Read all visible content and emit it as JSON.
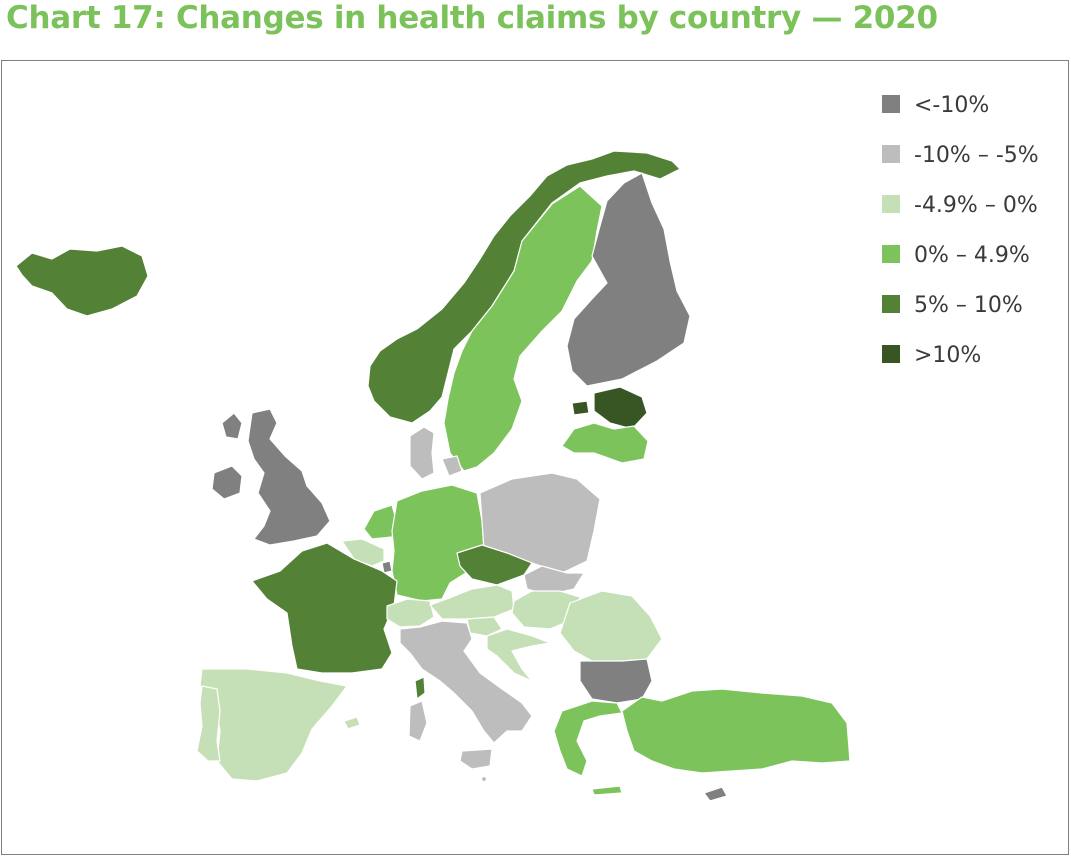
{
  "title": "Chart 17: Changes in health claims by country — 2020",
  "colors": {
    "title": "#7cc25a",
    "border": "#808080",
    "lt_minus10": "#808080",
    "m10_to_m5": "#bdbdbd",
    "m49_to_0": "#c5e0b6",
    "p0_to_49": "#7dc35c",
    "p5_to_10": "#538135",
    "gt10": "#375623"
  },
  "legend": [
    {
      "label": "<-10%",
      "color": "#808080",
      "key": "lt_minus10"
    },
    {
      "label": "-10% – -5%",
      "color": "#bdbdbd",
      "key": "m10_to_m5"
    },
    {
      "label": "-4.9% – 0%",
      "color": "#c5e0b6",
      "key": "m49_to_0"
    },
    {
      "label": "0% – 4.9%",
      "color": "#7dc35c",
      "key": "p0_to_49"
    },
    {
      "label": "5% – 10%",
      "color": "#538135",
      "key": "p5_to_10"
    },
    {
      "label": ">10%",
      "color": "#375623",
      "key": "gt10"
    }
  ],
  "chart_data": {
    "type": "choropleth",
    "title": "Chart 17: Changes in health claims by country — 2020",
    "categories": [
      "<-10%",
      "-10% – -5%",
      "-4.9% – 0%",
      "0% – 4.9%",
      "5% – 10%",
      ">10%"
    ],
    "regions": [
      {
        "name": "Iceland",
        "category": "5% – 10%"
      },
      {
        "name": "Norway",
        "category": "5% – 10%"
      },
      {
        "name": "Sweden",
        "category": "0% – 4.9%"
      },
      {
        "name": "Finland",
        "category": "<-10%"
      },
      {
        "name": "Estonia",
        "category": ">10%"
      },
      {
        "name": "Latvia",
        "category": "0% – 4.9%"
      },
      {
        "name": "Denmark",
        "category": "-10% – -5%"
      },
      {
        "name": "United Kingdom",
        "category": "<-10%"
      },
      {
        "name": "Ireland",
        "category": "<-10%"
      },
      {
        "name": "Netherlands",
        "category": "0% – 4.9%"
      },
      {
        "name": "Belgium",
        "category": "-4.9% – 0%"
      },
      {
        "name": "Luxembourg",
        "category": "<-10%"
      },
      {
        "name": "Germany",
        "category": "0% – 4.9%"
      },
      {
        "name": "Poland",
        "category": "-10% – -5%"
      },
      {
        "name": "Czech Republic",
        "category": "5% – 10%"
      },
      {
        "name": "Slovakia",
        "category": "-10% – -5%"
      },
      {
        "name": "France",
        "category": "5% – 10%"
      },
      {
        "name": "Switzerland",
        "category": "-4.9% – 0%"
      },
      {
        "name": "Austria",
        "category": "-4.9% – 0%"
      },
      {
        "name": "Slovenia",
        "category": "-4.9% – 0%"
      },
      {
        "name": "Hungary",
        "category": "-4.9% – 0%"
      },
      {
        "name": "Croatia",
        "category": "-4.9% – 0%"
      },
      {
        "name": "Romania",
        "category": "-4.9% – 0%"
      },
      {
        "name": "Italy",
        "category": "-10% – -5%"
      },
      {
        "name": "Malta",
        "category": "-10% – -5%"
      },
      {
        "name": "Spain",
        "category": "-4.9% – 0%"
      },
      {
        "name": "Portugal",
        "category": "-4.9% – 0%"
      },
      {
        "name": "Bulgaria",
        "category": "<-10%"
      },
      {
        "name": "Greece",
        "category": "0% – 4.9%"
      },
      {
        "name": "Turkey",
        "category": "0% – 4.9%"
      },
      {
        "name": "Cyprus",
        "category": "<-10%"
      }
    ]
  }
}
